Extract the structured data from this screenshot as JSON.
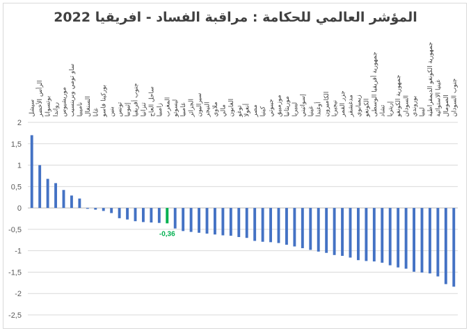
{
  "chart_data": {
    "type": "bar",
    "title": "المؤشر العالمي للحكامة : مراقبة الفساد - افريقيا 2022",
    "xlabel": "",
    "ylabel": "",
    "ylim": [
      -2.5,
      2
    ],
    "yticks": [
      2,
      1.5,
      1,
      0.5,
      0,
      -0.5,
      -1,
      -1.5,
      -2,
      -2.5
    ],
    "ytick_labels": [
      "2",
      "1,5",
      "1",
      "0,5",
      "0",
      "-0,5",
      "-1",
      "-1,5",
      "-2",
      "-2,5"
    ],
    "grid": true,
    "legend": "none",
    "categories": [
      "سيشل",
      "الرأس الأخضر",
      "بوتسوانا",
      "رواندا",
      "موريشيوس",
      "ساو تومي وبرينسيب",
      "ناميبيا",
      "السنغال",
      "غانا",
      "بوركينا فاسو",
      "بنين",
      "تونس",
      "إثيوبيا",
      "جنوب أفريقيا",
      "تنزانيا",
      "ساحل العاج",
      "زامبيا",
      "المغرب",
      "ليسوتو",
      "غامبيا",
      "الجزائر",
      "سيراليون",
      "النيجر",
      "ملاوي",
      "مالي",
      "الغابون",
      "توغو",
      "أنغولا",
      "مصر",
      "كينيا",
      "جيبوتي",
      "موزمبيق",
      "موريتانيا",
      "ليبيريا",
      "إسواتيني",
      "غينيا",
      "أوغندا",
      "الكاميرون",
      "نيجيريا",
      "جزر القمر",
      "مدغشقر",
      "زيمبابوي",
      "الكونغو",
      "جمهورية أفريقيا الوسطى",
      "تشاد",
      "إريتريا",
      "جمهورية الكونغو",
      "السودان",
      "بوروندي",
      "ليبيا",
      "جمهورية الكونغو الديمقراطية",
      "غينيا الاستوائية",
      "الصومال",
      "جنوب السودان"
    ],
    "values": [
      1.7,
      1.0,
      0.68,
      0.58,
      0.42,
      0.29,
      0.22,
      -0.02,
      -0.04,
      -0.07,
      -0.12,
      -0.24,
      -0.27,
      -0.31,
      -0.33,
      -0.34,
      -0.35,
      -0.36,
      -0.48,
      -0.54,
      -0.56,
      -0.58,
      -0.6,
      -0.62,
      -0.64,
      -0.65,
      -0.68,
      -0.7,
      -0.77,
      -0.79,
      -0.8,
      -0.82,
      -0.86,
      -0.9,
      -0.94,
      -0.98,
      -1.02,
      -1.05,
      -1.1,
      -1.12,
      -1.16,
      -1.22,
      -1.24,
      -1.25,
      -1.28,
      -1.34,
      -1.39,
      -1.42,
      -1.49,
      -1.51,
      -1.53,
      -1.6,
      -1.78,
      -1.84
    ],
    "highlight_index": 17,
    "highlight_label": "-0,36",
    "colors": {
      "bar": "#4472c4",
      "highlight": "#00b050",
      "grid": "#d9d9d9",
      "axis": "#bfbfbf"
    }
  }
}
